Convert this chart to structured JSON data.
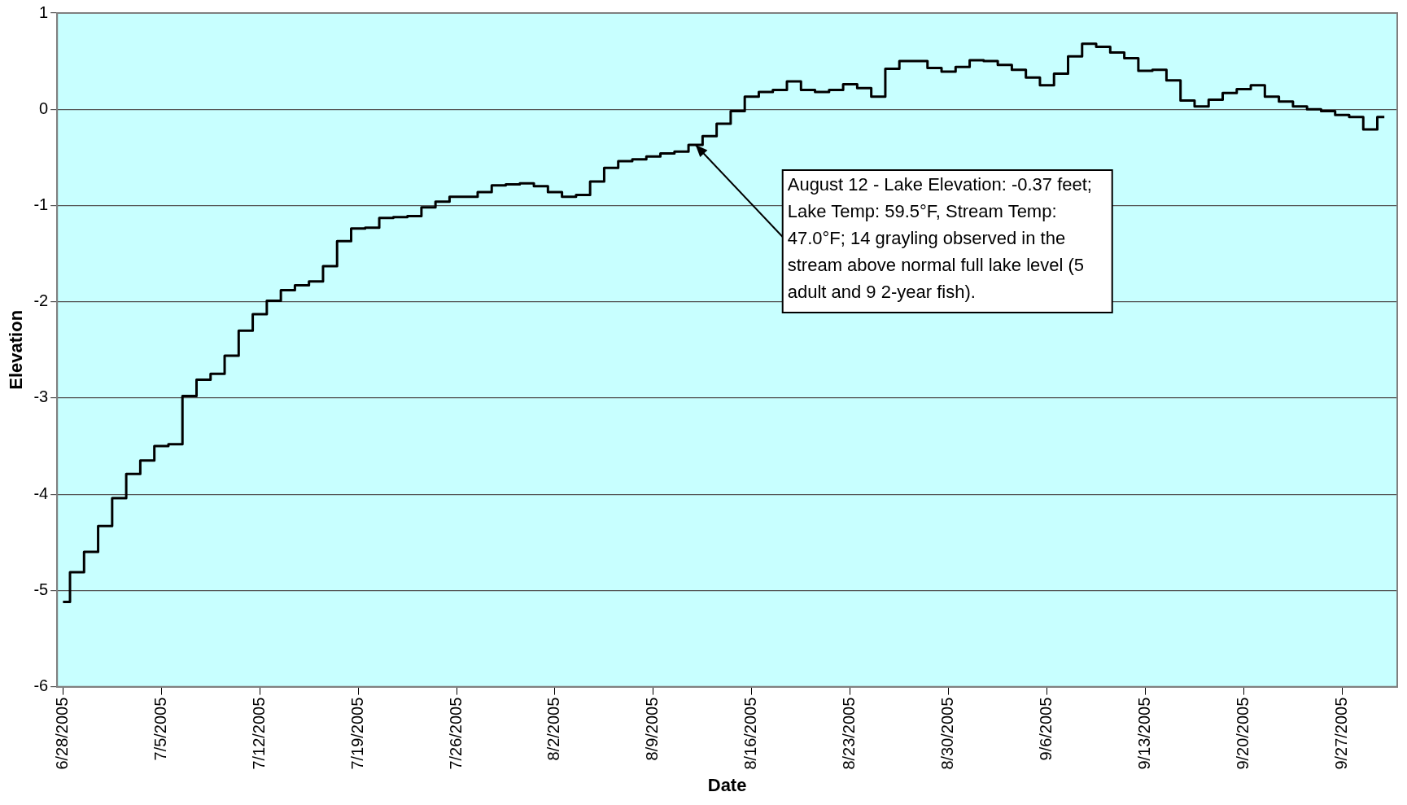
{
  "chart_data": {
    "type": "step",
    "xlabel": "Date",
    "ylabel": "Elevation",
    "x": [
      "2005-06-28",
      "2005-06-29",
      "2005-06-30",
      "2005-07-01",
      "2005-07-02",
      "2005-07-03",
      "2005-07-04",
      "2005-07-05",
      "2005-07-06",
      "2005-07-07",
      "2005-07-08",
      "2005-07-09",
      "2005-07-10",
      "2005-07-11",
      "2005-07-12",
      "2005-07-13",
      "2005-07-14",
      "2005-07-15",
      "2005-07-16",
      "2005-07-17",
      "2005-07-18",
      "2005-07-19",
      "2005-07-20",
      "2005-07-21",
      "2005-07-22",
      "2005-07-23",
      "2005-07-24",
      "2005-07-25",
      "2005-07-26",
      "2005-07-27",
      "2005-07-28",
      "2005-07-29",
      "2005-07-30",
      "2005-07-31",
      "2005-08-01",
      "2005-08-02",
      "2005-08-03",
      "2005-08-04",
      "2005-08-05",
      "2005-08-06",
      "2005-08-07",
      "2005-08-08",
      "2005-08-09",
      "2005-08-10",
      "2005-08-11",
      "2005-08-12",
      "2005-08-13",
      "2005-08-14",
      "2005-08-15",
      "2005-08-16",
      "2005-08-17",
      "2005-08-18",
      "2005-08-19",
      "2005-08-20",
      "2005-08-21",
      "2005-08-22",
      "2005-08-23",
      "2005-08-24",
      "2005-08-25",
      "2005-08-26",
      "2005-08-27",
      "2005-08-28",
      "2005-08-29",
      "2005-08-30",
      "2005-08-31",
      "2005-09-01",
      "2005-09-02",
      "2005-09-03",
      "2005-09-04",
      "2005-09-05",
      "2005-09-06",
      "2005-09-07",
      "2005-09-08",
      "2005-09-09",
      "2005-09-10",
      "2005-09-11",
      "2005-09-12",
      "2005-09-13",
      "2005-09-14",
      "2005-09-15",
      "2005-09-16",
      "2005-09-17",
      "2005-09-18",
      "2005-09-19",
      "2005-09-20",
      "2005-09-21",
      "2005-09-22",
      "2005-09-23",
      "2005-09-24",
      "2005-09-25",
      "2005-09-26",
      "2005-09-27",
      "2005-09-28",
      "2005-09-29",
      "2005-09-30"
    ],
    "series": [
      {
        "color": "#000000",
        "values": [
          -5.12,
          -4.81,
          -4.6,
          -4.33,
          -4.04,
          -3.79,
          -3.65,
          -3.5,
          -3.48,
          -2.98,
          -2.81,
          -2.75,
          -2.56,
          -2.3,
          -2.13,
          -1.99,
          -1.88,
          -1.83,
          -1.79,
          -1.63,
          -1.37,
          -1.24,
          -1.23,
          -1.13,
          -1.12,
          -1.11,
          -1.02,
          -0.96,
          -0.91,
          -0.91,
          -0.86,
          -0.79,
          -0.78,
          -0.77,
          -0.8,
          -0.86,
          -0.91,
          -0.89,
          -0.75,
          -0.61,
          -0.54,
          -0.52,
          -0.49,
          -0.46,
          -0.44,
          -0.37,
          -0.28,
          -0.15,
          -0.02,
          0.13,
          0.18,
          0.2,
          0.29,
          0.2,
          0.18,
          0.2,
          0.26,
          0.22,
          0.13,
          0.42,
          0.5,
          0.5,
          0.43,
          0.39,
          0.44,
          0.51,
          0.5,
          0.46,
          0.41,
          0.33,
          0.25,
          0.37,
          0.55,
          0.68,
          0.65,
          0.59,
          0.53,
          0.4,
          0.41,
          0.3,
          0.09,
          0.03,
          0.1,
          0.17,
          0.21,
          0.25,
          0.13,
          0.08,
          0.03,
          0.0,
          -0.02,
          -0.06,
          -0.08,
          -0.21,
          -0.08
        ]
      }
    ],
    "xlim": [
      "2005-06-27T14:00",
      "2005-09-30T22:00"
    ],
    "xticks": [
      {
        "value": "2005-06-28",
        "label": "6/28/2005"
      },
      {
        "value": "2005-07-05",
        "label": "7/5/2005"
      },
      {
        "value": "2005-07-12",
        "label": "7/12/2005"
      },
      {
        "value": "2005-07-19",
        "label": "7/19/2005"
      },
      {
        "value": "2005-07-26",
        "label": "7/26/2005"
      },
      {
        "value": "2005-08-02",
        "label": "8/2/2005"
      },
      {
        "value": "2005-08-09",
        "label": "8/9/2005"
      },
      {
        "value": "2005-08-16",
        "label": "8/16/2005"
      },
      {
        "value": "2005-08-23",
        "label": "8/23/2005"
      },
      {
        "value": "2005-08-30",
        "label": "8/30/2005"
      },
      {
        "value": "2005-09-06",
        "label": "9/6/2005"
      },
      {
        "value": "2005-09-13",
        "label": "9/13/2005"
      },
      {
        "value": "2005-09-20",
        "label": "9/20/2005"
      },
      {
        "value": "2005-09-27",
        "label": "9/27/2005"
      }
    ],
    "ylim": [
      -6,
      1
    ],
    "yticks": [
      -6,
      -5,
      -4,
      -3,
      -2,
      -1,
      0,
      1
    ],
    "grid": "y",
    "line_style": "solid",
    "marker": "none",
    "annotations": [
      {
        "text": "August 12 - Lake Elevation: -0.37 feet; Lake Temp: 59.5°F, Stream Temp: 47.0°F; 14 grayling observed in the stream above normal full lake level (5 adult and 9 2-year fish).",
        "x": "2005-08-12",
        "y": -0.37
      }
    ]
  }
}
